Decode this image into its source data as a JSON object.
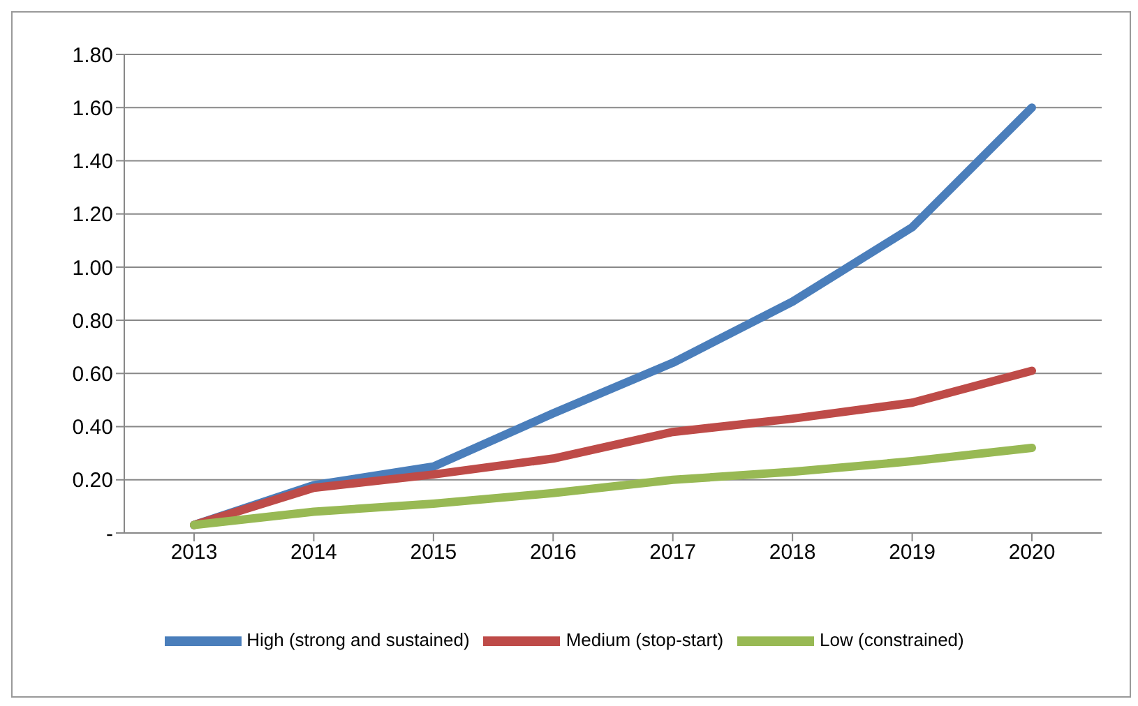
{
  "chart_data": {
    "type": "line",
    "categories": [
      "2013",
      "2014",
      "2015",
      "2016",
      "2017",
      "2018",
      "2019",
      "2020"
    ],
    "series": [
      {
        "name": "High (strong and sustained)",
        "color": "#4a7ebb",
        "values": [
          0.03,
          0.18,
          0.25,
          0.45,
          0.64,
          0.87,
          1.15,
          1.6
        ]
      },
      {
        "name": "Medium (stop-start)",
        "color": "#be4b48",
        "values": [
          0.03,
          0.17,
          0.22,
          0.28,
          0.38,
          0.43,
          0.49,
          0.61
        ]
      },
      {
        "name": "Low (constrained)",
        "color": "#98b954",
        "values": [
          0.03,
          0.08,
          0.11,
          0.15,
          0.2,
          0.23,
          0.27,
          0.32
        ]
      }
    ],
    "ylim": [
      0,
      1.8
    ],
    "yticks": [
      {
        "value": 0,
        "label": "-"
      },
      {
        "value": 0.2,
        "label": "0.20"
      },
      {
        "value": 0.4,
        "label": "0.40"
      },
      {
        "value": 0.6,
        "label": "0.60"
      },
      {
        "value": 0.8,
        "label": "0.80"
      },
      {
        "value": 1,
        "label": "1.00"
      },
      {
        "value": 1.2,
        "label": "1.20"
      },
      {
        "value": 1.4,
        "label": "1.40"
      },
      {
        "value": 1.6,
        "label": "1.60"
      },
      {
        "value": 1.8,
        "label": "1.80"
      }
    ],
    "grid": "y",
    "legend": "bottom",
    "marker": "none",
    "line_style": "solid"
  }
}
